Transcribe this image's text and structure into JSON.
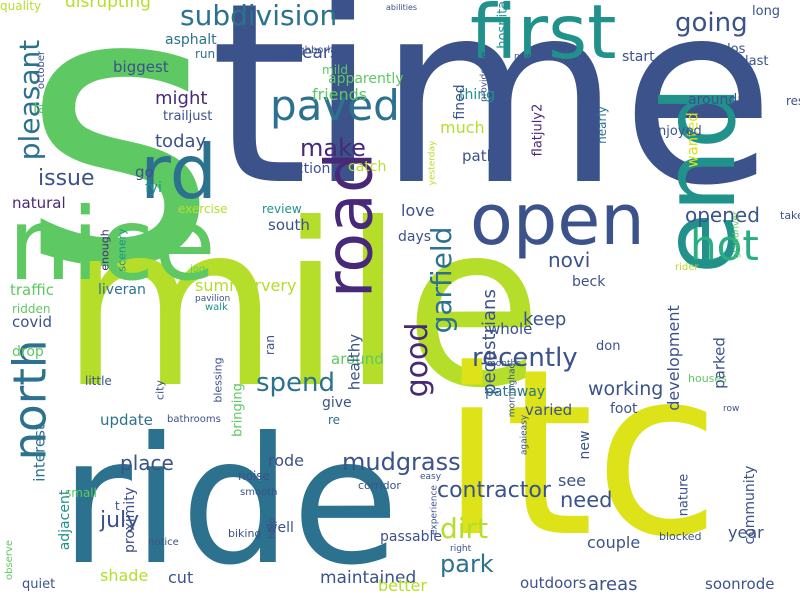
{
  "words": [
    {
      "text": "s",
      "color": "#5ec962",
      "rot": 0
    },
    {
      "text": "time",
      "color": "#3b528b",
      "rot": 0
    },
    {
      "text": "mile",
      "color": "#b5de2b",
      "rot": 0
    },
    {
      "text": "ride",
      "color": "#2c728e",
      "rot": 0
    },
    {
      "text": "itc",
      "color": "#dde318",
      "rot": 0
    },
    {
      "text": "end",
      "color": "#21918c",
      "rot": -90
    },
    {
      "text": "nice",
      "color": "#5ec962",
      "rot": 0
    },
    {
      "text": "first",
      "color": "#21918c",
      "rot": 0
    },
    {
      "text": "open",
      "color": "#3b528b",
      "rot": 0
    },
    {
      "text": "road",
      "color": "#482878",
      "rot": -90
    },
    {
      "text": "rd",
      "color": "#2c728e",
      "rot": 0
    },
    {
      "text": "north",
      "color": "#2c728e",
      "rot": -90
    },
    {
      "text": "paved",
      "color": "#2c728e",
      "rot": 0
    },
    {
      "text": "hot",
      "color": "#28ae80",
      "rot": 0
    },
    {
      "text": "subdivision",
      "color": "#2c728e",
      "rot": 0
    },
    {
      "text": "going",
      "color": "#3b528b",
      "rot": 0
    },
    {
      "text": "pleasant",
      "color": "#2c728e",
      "rot": -90
    },
    {
      "text": "disrupting",
      "color": "#b5de2b",
      "rot": 0
    },
    {
      "text": "appears",
      "color": "#3b528b",
      "rot": 0
    },
    {
      "text": "apparently",
      "color": "#5ec962",
      "rot": 0
    },
    {
      "text": "asphalt",
      "color": "#2c728e",
      "rot": 0
    },
    {
      "text": "run",
      "color": "#2c728e",
      "rot": 0
    },
    {
      "text": "biggest",
      "color": "#3b528b",
      "rot": 0
    },
    {
      "text": "mild",
      "color": "#5ec962",
      "rot": 0
    },
    {
      "text": "friends",
      "color": "#5ec962",
      "rot": 0
    },
    {
      "text": "might",
      "color": "#482878",
      "rot": 0
    },
    {
      "text": "trailjust",
      "color": "#3b528b",
      "rot": 0
    },
    {
      "text": "today",
      "color": "#3b528b",
      "rot": 0
    },
    {
      "text": "family",
      "color": "#5ec962",
      "rot": 0
    },
    {
      "text": "october",
      "color": "#3b528b",
      "rot": -90
    },
    {
      "text": "issue",
      "color": "#3b528b",
      "rot": 0
    },
    {
      "text": "make",
      "color": "#482878",
      "rot": 0
    },
    {
      "text": "section",
      "color": "#3b528b",
      "rot": 0
    },
    {
      "text": "catch",
      "color": "#b5de2b",
      "rot": 0
    },
    {
      "text": "go",
      "color": "#3b528b",
      "rot": 0
    },
    {
      "text": "fyi",
      "color": "#21918c",
      "rot": 0
    },
    {
      "text": "natural",
      "color": "#482878",
      "rot": 0
    },
    {
      "text": "exercise",
      "color": "#b5de2b",
      "rot": 0
    },
    {
      "text": "review",
      "color": "#21918c",
      "rot": 0
    },
    {
      "text": "enough",
      "color": "#482878",
      "rot": -90
    },
    {
      "text": "scenery",
      "color": "#21918c",
      "rot": -90
    },
    {
      "text": "jog",
      "color": "#5ec962",
      "rot": 0
    },
    {
      "text": "south",
      "color": "#3b528b",
      "rot": 0
    },
    {
      "text": "summervery",
      "color": "#b5de2b",
      "rot": 0
    },
    {
      "text": "traffic",
      "color": "#5ec962",
      "rot": 0
    },
    {
      "text": "liveran",
      "color": "#2c728e",
      "rot": 0
    },
    {
      "text": "pavilion",
      "color": "#3b528b",
      "rot": 0
    },
    {
      "text": "ridden",
      "color": "#5ec962",
      "rot": 0
    },
    {
      "text": "walk",
      "color": "#21918c",
      "rot": 0
    },
    {
      "text": "covid",
      "color": "#3b528b",
      "rot": 0
    },
    {
      "text": "ran",
      "color": "#3b528b",
      "rot": -90
    },
    {
      "text": "drop",
      "color": "#5ec962",
      "rot": 0
    },
    {
      "text": "little",
      "color": "#3b528b",
      "rot": 0
    },
    {
      "text": "city",
      "color": "#3b528b",
      "rot": -90
    },
    {
      "text": "blessing",
      "color": "#3b528b",
      "rot": -90
    },
    {
      "text": "bringing",
      "color": "#5ec962",
      "rot": -90
    },
    {
      "text": "update",
      "color": "#2c728e",
      "rot": 0
    },
    {
      "text": "re",
      "color": "#2c728e",
      "rot": 0
    },
    {
      "text": "small",
      "color": "#5ec962",
      "rot": 0
    },
    {
      "text": "interest",
      "color": "#2c728e",
      "rot": -90
    },
    {
      "text": "place",
      "color": "#3b528b",
      "rot": 0
    },
    {
      "text": "rode",
      "color": "#3b528b",
      "rot": 0
    },
    {
      "text": "noise",
      "color": "#3b528b",
      "rot": 0
    },
    {
      "text": "smooth",
      "color": "#3b528b",
      "rot": 0
    },
    {
      "text": "t",
      "color": "#3b528b",
      "rot": 0
    },
    {
      "text": "biking",
      "color": "#3b528b",
      "rot": 0
    },
    {
      "text": "help",
      "color": "#3b528b",
      "rot": -90
    },
    {
      "text": "observe",
      "color": "#5ec962",
      "rot": -90
    },
    {
      "text": "adjacent",
      "color": "#21918c",
      "rot": -90
    },
    {
      "text": "proximity",
      "color": "#3b528b",
      "rot": -90
    },
    {
      "text": "notice",
      "color": "#3b528b",
      "rot": 0
    },
    {
      "text": "shade",
      "color": "#b5de2b",
      "rot": 0
    },
    {
      "text": "quiet",
      "color": "#3b528b",
      "rot": 0
    },
    {
      "text": "cut",
      "color": "#3b528b",
      "rot": 0
    },
    {
      "text": "maintained",
      "color": "#3b528b",
      "rot": 0
    },
    {
      "text": "well",
      "color": "#3b528b",
      "rot": 0
    },
    {
      "text": "july",
      "color": "#3b528b",
      "rot": 0
    },
    {
      "text": "spend",
      "color": "#2c728e",
      "rot": 0
    },
    {
      "text": "good",
      "color": "#482878",
      "rot": -90
    },
    {
      "text": "garfield",
      "color": "#2c728e",
      "rot": -90
    },
    {
      "text": "novi",
      "color": "#3b528b",
      "rot": 0
    },
    {
      "text": "recently",
      "color": "#3b528b",
      "rot": 0
    },
    {
      "text": "keep",
      "color": "#3b528b",
      "rot": 0
    },
    {
      "text": "beck",
      "color": "#3b528b",
      "rot": 0
    },
    {
      "text": "mudgrass",
      "color": "#3b528b",
      "rot": 0
    },
    {
      "text": "contractor",
      "color": "#3b528b",
      "rot": 0
    },
    {
      "text": "dirt",
      "color": "#b5de2b",
      "rot": 0
    },
    {
      "text": "park",
      "color": "#2c728e",
      "rot": 0
    },
    {
      "text": "days",
      "color": "#3b528b",
      "rot": 0
    },
    {
      "text": "love",
      "color": "#3b528b",
      "rot": 0
    },
    {
      "text": "much",
      "color": "#b5de2b",
      "rot": 0
    },
    {
      "text": "path",
      "color": "#3b528b",
      "rot": 0
    },
    {
      "text": "thing",
      "color": "#21918c",
      "rot": 0
    },
    {
      "text": "fined",
      "color": "#3b528b",
      "rot": -90
    },
    {
      "text": "providence",
      "color": "#3b528b",
      "rot": -90
    },
    {
      "text": "flatjuly2",
      "color": "#482878",
      "rot": -90
    },
    {
      "text": "nearly",
      "color": "#2c728e",
      "rot": -90
    },
    {
      "text": "hospital",
      "color": "#21918c",
      "rot": -90
    },
    {
      "text": "now",
      "color": "#3b528b",
      "rot": 0
    },
    {
      "text": "abilities",
      "color": "#3b528b",
      "rot": 0
    },
    {
      "text": "neighborhood",
      "color": "#3b528b",
      "rot": 0
    },
    {
      "text": "start",
      "color": "#3b528b",
      "rot": 0
    },
    {
      "text": "kudos",
      "color": "#3b528b",
      "rot": 0
    },
    {
      "text": "last",
      "color": "#3b528b",
      "rot": 0
    },
    {
      "text": "long",
      "color": "#3b528b",
      "rot": 0
    },
    {
      "text": "aroundi",
      "color": "#3b528b",
      "rot": 0
    },
    {
      "text": "rest",
      "color": "#3b528b",
      "rot": 0
    },
    {
      "text": "wanted",
      "color": "#dde318",
      "rot": -90
    },
    {
      "text": "enjoyed",
      "color": "#3b528b",
      "rot": 0
    },
    {
      "text": "yesterday",
      "color": "#b5de2b",
      "rot": -90
    },
    {
      "text": "opened",
      "color": "#3b528b",
      "rot": 0
    },
    {
      "text": "take",
      "color": "#3b528b",
      "rot": 0
    },
    {
      "text": "grandriver",
      "color": "#5ec962",
      "rot": -90
    },
    {
      "text": "rider",
      "color": "#b5de2b",
      "rot": 0
    },
    {
      "text": "months",
      "color": "#3b528b",
      "rot": 0
    },
    {
      "text": "morninghad",
      "color": "#3b528b",
      "rot": -90
    },
    {
      "text": "development",
      "color": "#3b528b",
      "rot": -90
    },
    {
      "text": "pedestrians",
      "color": "#3b528b",
      "rot": -90
    },
    {
      "text": "whole",
      "color": "#3b528b",
      "rot": 0
    },
    {
      "text": "around",
      "color": "#5ec962",
      "rot": 0
    },
    {
      "text": "healthy",
      "color": "#3b528b",
      "rot": -90
    },
    {
      "text": "don",
      "color": "#3b528b",
      "rot": 0
    },
    {
      "text": "houses",
      "color": "#5ec962",
      "rot": 0
    },
    {
      "text": "parked",
      "color": "#3b528b",
      "rot": -90
    },
    {
      "text": "give",
      "color": "#3b528b",
      "rot": 0
    },
    {
      "text": "working",
      "color": "#3b528b",
      "rot": 0
    },
    {
      "text": "pathway",
      "color": "#2c728e",
      "rot": 0
    },
    {
      "text": "varied",
      "color": "#3b528b",
      "rot": 0
    },
    {
      "text": "foot",
      "color": "#3b528b",
      "rot": 0
    },
    {
      "text": "row",
      "color": "#3b528b",
      "rot": 0
    },
    {
      "text": "bathrooms",
      "color": "#3b528b",
      "rot": 0
    },
    {
      "text": "agaieasy",
      "color": "#3b528b",
      "rot": -90
    },
    {
      "text": "new",
      "color": "#3b528b",
      "rot": -90
    },
    {
      "text": "see",
      "color": "#3b528b",
      "rot": 0
    },
    {
      "text": "need",
      "color": "#3b528b",
      "rot": 0
    },
    {
      "text": "easy",
      "color": "#3b528b",
      "rot": 0
    },
    {
      "text": "corridor",
      "color": "#3b528b",
      "rot": 0
    },
    {
      "text": "experience",
      "color": "#3b528b",
      "rot": -90
    },
    {
      "text": "passable",
      "color": "#3b528b",
      "rot": 0
    },
    {
      "text": "couple",
      "color": "#3b528b",
      "rot": 0
    },
    {
      "text": "right",
      "color": "#3b528b",
      "rot": 0
    },
    {
      "text": "blocked",
      "color": "#3b528b",
      "rot": 0
    },
    {
      "text": "nature",
      "color": "#3b528b",
      "rot": -90
    },
    {
      "text": "community",
      "color": "#3b528b",
      "rot": -90
    },
    {
      "text": "year",
      "color": "#3b528b",
      "rot": 0
    },
    {
      "text": "better",
      "color": "#b5de2b",
      "rot": 0
    },
    {
      "text": "outdoors",
      "color": "#3b528b",
      "rot": 0
    },
    {
      "text": "areas",
      "color": "#3b528b",
      "rot": 0
    },
    {
      "text": "soonrode",
      "color": "#3b528b",
      "rot": 0
    },
    {
      "text": "quality",
      "color": "#b5de2b",
      "rot": 0
    }
  ]
}
